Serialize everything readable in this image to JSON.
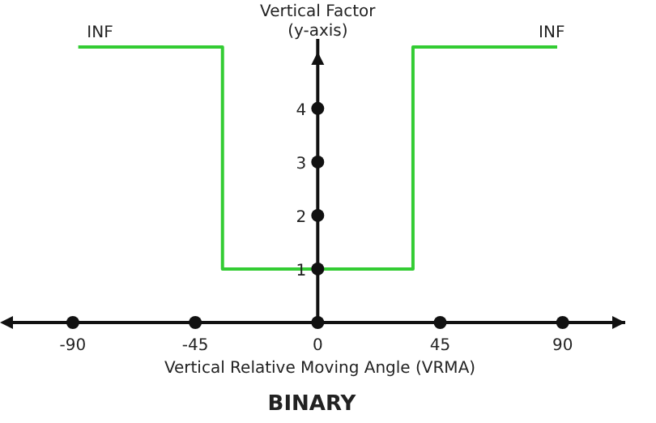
{
  "chart_data": {
    "type": "step",
    "title": "BINARY",
    "xlabel": "Vertical Relative Moving Angle (VRMA)",
    "ylabel": "Vertical Factor (y-axis)",
    "x": [
      -88,
      -35,
      35,
      88
    ],
    "series": [
      {
        "color": "#33cc33",
        "values": [
          5.15,
          1,
          5.15,
          5.15
        ]
      }
    ],
    "xlim": [
      -112,
      113
    ],
    "ylim": [
      0,
      5.3
    ],
    "xticks": [
      -90,
      -45,
      0,
      45,
      90
    ],
    "yticks": [
      1,
      2,
      3,
      4
    ],
    "annotations": [
      {
        "text": "INF",
        "x": -80,
        "y": 5.15
      },
      {
        "text": "INF",
        "x": 86,
        "y": 5.15
      }
    ],
    "grid": false,
    "legend": false,
    "marker": "none"
  }
}
